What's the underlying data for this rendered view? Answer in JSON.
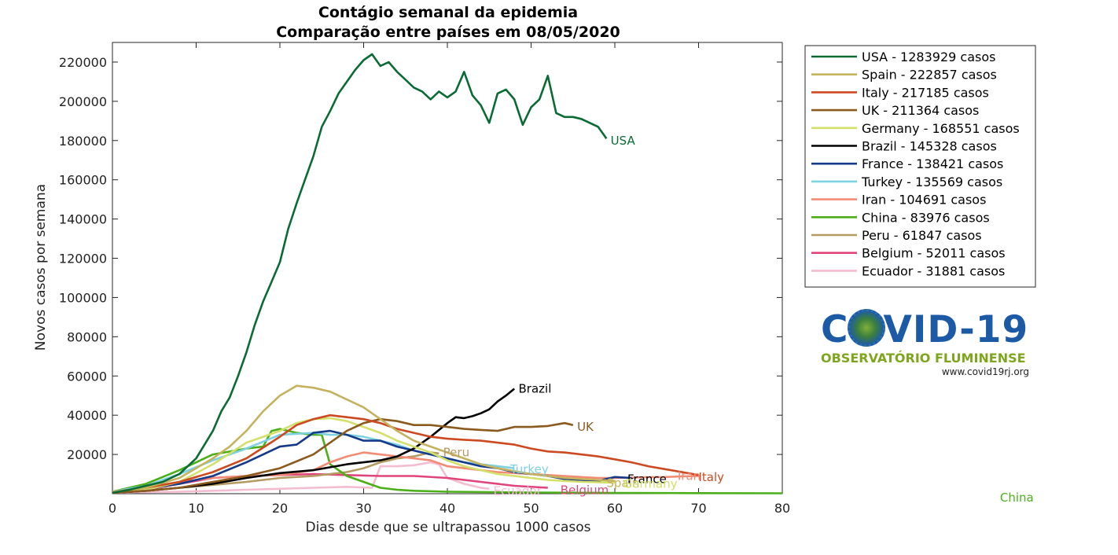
{
  "chart_data": {
    "type": "line",
    "title": "Contágio semanal da epidemia",
    "subtitle": "Comparação entre países em 08/05/2020",
    "xlabel": "Dias desde que se ultrapassou 1000 casos",
    "ylabel": "Novos casos por semana",
    "xlim": [
      0,
      80
    ],
    "ylim": [
      0,
      230000
    ],
    "xticks": [
      0,
      10,
      20,
      30,
      40,
      50,
      60,
      70,
      80
    ],
    "yticks": [
      20000,
      40000,
      60000,
      80000,
      100000,
      120000,
      140000,
      160000,
      180000,
      200000,
      220000
    ],
    "grid": false,
    "legend_position": "outside-right",
    "series": [
      {
        "name": "USA",
        "legend": "USA - 1283929 casos",
        "color": "#0b6b35",
        "x": [
          0,
          2,
          4,
          6,
          8,
          10,
          12,
          13,
          14,
          15,
          16,
          17,
          18,
          19,
          20,
          21,
          22,
          23,
          24,
          25,
          26,
          27,
          28,
          29,
          30,
          31,
          32,
          33,
          34,
          35,
          36,
          37,
          38,
          39,
          40,
          41,
          42,
          43,
          44,
          45,
          46,
          47,
          48,
          49,
          50,
          51,
          52,
          53,
          54,
          55,
          56,
          57,
          58,
          59
        ],
        "y": [
          500,
          2000,
          4000,
          6000,
          10000,
          18000,
          32000,
          42000,
          49000,
          60000,
          72000,
          86000,
          98000,
          108000,
          118000,
          135000,
          148000,
          160000,
          172000,
          187000,
          195000,
          204000,
          210000,
          216000,
          221000,
          224000,
          218000,
          220000,
          215000,
          211000,
          207000,
          205000,
          201000,
          205000,
          202000,
          205000,
          215000,
          203000,
          198000,
          189000,
          204000,
          206000,
          201000,
          188000,
          197000,
          201000,
          213000,
          194000,
          192000,
          192000,
          191000,
          189000,
          187000,
          181000
        ]
      },
      {
        "name": "Spain",
        "legend": "Spain - 222857 casos",
        "color": "#c5b25e",
        "x": [
          0,
          4,
          8,
          12,
          14,
          16,
          18,
          20,
          22,
          24,
          26,
          28,
          30,
          32,
          34,
          36,
          38,
          40,
          42,
          44,
          46,
          48,
          50,
          52,
          54,
          56,
          58,
          60
        ],
        "y": [
          1000,
          3000,
          8000,
          18000,
          24000,
          32000,
          42000,
          50000,
          55000,
          54000,
          52000,
          48000,
          44000,
          38000,
          32000,
          27000,
          24000,
          21000,
          18000,
          15000,
          13000,
          11500,
          10000,
          9000,
          8000,
          7500,
          7000,
          6500
        ]
      },
      {
        "name": "Italy",
        "legend": "Italy - 217185 casos",
        "color": "#cc4a21",
        "x": [
          0,
          4,
          8,
          12,
          16,
          20,
          22,
          24,
          26,
          28,
          30,
          32,
          34,
          36,
          38,
          40,
          42,
          44,
          46,
          48,
          50,
          52,
          54,
          56,
          58,
          60,
          62,
          64,
          66,
          68,
          70
        ],
        "y": [
          1000,
          3000,
          6000,
          11000,
          18000,
          29000,
          35000,
          38000,
          40000,
          39000,
          38000,
          36000,
          33000,
          31000,
          29000,
          28000,
          27500,
          27000,
          26000,
          25000,
          23000,
          21500,
          21000,
          20000,
          19000,
          17500,
          16000,
          14000,
          12500,
          11000,
          9500
        ]
      },
      {
        "name": "UK",
        "legend": "UK - 211364 casos",
        "color": "#8a5a1e",
        "x": [
          0,
          4,
          8,
          12,
          16,
          20,
          24,
          26,
          28,
          30,
          32,
          34,
          36,
          38,
          40,
          42,
          44,
          46,
          48,
          50,
          52,
          54,
          55
        ],
        "y": [
          500,
          1500,
          3000,
          6000,
          9000,
          13000,
          20000,
          26000,
          32000,
          36000,
          38000,
          37000,
          35000,
          35000,
          34000,
          33000,
          32500,
          32000,
          34000,
          34000,
          34500,
          36000,
          35000
        ]
      },
      {
        "name": "Germany",
        "legend": "Germany - 168551 casos",
        "color": "#d3e06c",
        "x": [
          0,
          4,
          8,
          12,
          16,
          20,
          22,
          24,
          26,
          28,
          30,
          32,
          34,
          36,
          38,
          40,
          42,
          44,
          46,
          48,
          50,
          52,
          54,
          56,
          58,
          60
        ],
        "y": [
          500,
          2000,
          6000,
          15000,
          26000,
          32000,
          36000,
          38000,
          38500,
          37000,
          34000,
          31000,
          27000,
          24000,
          21000,
          17000,
          14000,
          12000,
          10000,
          9000,
          8000,
          7000,
          6500,
          6000,
          5800,
          5600
        ]
      },
      {
        "name": "Brazil",
        "legend": "Brazil - 145328 casos",
        "color": "#000000",
        "x": [
          0,
          4,
          8,
          12,
          16,
          20,
          24,
          28,
          32,
          34,
          36,
          38,
          40,
          41,
          42,
          43,
          44,
          45,
          46,
          47,
          48
        ],
        "y": [
          500,
          1500,
          3000,
          5000,
          8000,
          10500,
          12000,
          15000,
          17000,
          19000,
          23000,
          29000,
          36000,
          39000,
          38500,
          39500,
          41000,
          43000,
          47000,
          50000,
          53500
        ]
      },
      {
        "name": "France",
        "legend": "France - 138421 casos",
        "color": "#163a8a",
        "x": [
          0,
          4,
          8,
          12,
          16,
          20,
          22,
          24,
          26,
          28,
          30,
          32,
          34,
          36,
          38,
          40,
          42,
          44,
          46,
          48,
          50,
          52,
          54,
          56,
          58,
          60,
          62
        ],
        "y": [
          1000,
          2500,
          5000,
          9000,
          16000,
          24000,
          25000,
          31000,
          32000,
          30000,
          27000,
          27000,
          24000,
          22000,
          20000,
          18000,
          16000,
          14000,
          13000,
          11000,
          10000,
          9000,
          7500,
          7000,
          6500,
          8500,
          8000
        ]
      },
      {
        "name": "Turkey",
        "legend": "Turkey - 135569 casos",
        "color": "#7ed1e0",
        "x": [
          0,
          4,
          8,
          12,
          16,
          20,
          24,
          26,
          28,
          30,
          32,
          34,
          36,
          38,
          40,
          42,
          44,
          46,
          48
        ],
        "y": [
          1000,
          4000,
          10000,
          17000,
          23000,
          30000,
          31000,
          30000,
          30000,
          29000,
          27000,
          25000,
          22000,
          20000,
          18000,
          16000,
          15000,
          14000,
          13000
        ]
      },
      {
        "name": "Iran",
        "legend": "Iran - 104691 casos",
        "color": "#f28c74",
        "x": [
          0,
          4,
          8,
          12,
          16,
          20,
          24,
          26,
          28,
          30,
          32,
          34,
          36,
          38,
          40,
          42,
          44,
          46,
          48,
          50,
          52,
          54,
          56,
          58,
          60,
          62,
          64,
          66,
          68,
          70
        ],
        "y": [
          1000,
          3000,
          6000,
          8000,
          9000,
          9500,
          12000,
          16000,
          19000,
          21000,
          20000,
          19000,
          18000,
          17000,
          14000,
          13000,
          12000,
          11000,
          10500,
          10000,
          9500,
          9000,
          8500,
          8000,
          8000,
          8200,
          8400,
          8500,
          8800,
          9000
        ]
      },
      {
        "name": "China",
        "legend": "China - 83976 casos",
        "color": "#4caf1a",
        "x": [
          0,
          4,
          8,
          12,
          16,
          18,
          19,
          20,
          22,
          24,
          25,
          26,
          27,
          28,
          30,
          32,
          34,
          36,
          40,
          45,
          50,
          60,
          70,
          80
        ],
        "y": [
          1000,
          5000,
          12000,
          20000,
          23000,
          24000,
          32000,
          33000,
          31000,
          30000,
          30000,
          15000,
          12000,
          9000,
          6000,
          3000,
          2000,
          1500,
          1000,
          800,
          600,
          400,
          300,
          200
        ]
      },
      {
        "name": "Peru",
        "legend": "Peru - 61847 casos",
        "color": "#b59a62",
        "x": [
          0,
          4,
          8,
          12,
          16,
          20,
          24,
          26,
          28,
          30,
          32,
          34,
          36,
          38,
          39
        ],
        "y": [
          500,
          1500,
          3000,
          4500,
          6000,
          8000,
          9000,
          10000,
          11000,
          13000,
          16000,
          18000,
          19000,
          21000,
          20500
        ]
      },
      {
        "name": "Belgium",
        "legend": "Belgium - 52011 casos",
        "color": "#e0457a",
        "x": [
          0,
          4,
          8,
          12,
          16,
          20,
          24,
          28,
          32,
          36,
          40,
          44,
          48,
          52
        ],
        "y": [
          500,
          2000,
          5000,
          8000,
          9000,
          9500,
          10000,
          9500,
          9000,
          9000,
          8000,
          6000,
          4000,
          3000
        ]
      },
      {
        "name": "Ecuador",
        "legend": "Ecuador - 31881 casos",
        "color": "#f4bcd0",
        "x": [
          0,
          4,
          8,
          12,
          16,
          20,
          24,
          28,
          31,
          32,
          34,
          36,
          38,
          39,
          40,
          42,
          44,
          45
        ],
        "y": [
          500,
          800,
          1000,
          1500,
          2000,
          2500,
          3000,
          3500,
          3000,
          14000,
          14000,
          14500,
          16000,
          15000,
          8000,
          5000,
          3000,
          2500
        ]
      }
    ],
    "end_labels": [
      {
        "text": "USA",
        "x": 59.5,
        "y": 180000,
        "color": "#0b6b35"
      },
      {
        "text": "Brazil",
        "x": 48.5,
        "y": 53500,
        "color": "#000000"
      },
      {
        "text": "UK",
        "x": 55.5,
        "y": 34000,
        "color": "#8a5a1e"
      },
      {
        "text": "Peru",
        "x": 39.5,
        "y": 21000,
        "color": "#b59a62"
      },
      {
        "text": "Turkey",
        "x": 47.5,
        "y": 12500,
        "color": "#7ed1e0"
      },
      {
        "text": "France",
        "x": 61.5,
        "y": 7500,
        "color": "#000000"
      },
      {
        "text": "Spain",
        "x": 59,
        "y": 5500,
        "color": "#c5b25e"
      },
      {
        "text": "Germany",
        "x": 61,
        "y": 5000,
        "color": "#d3e06c"
      },
      {
        "text": "Iran",
        "x": 67.5,
        "y": 9000,
        "color": "#f28c74"
      },
      {
        "text": "Italy",
        "x": 70,
        "y": 8500,
        "color": "#cc4a21"
      },
      {
        "text": "Ecuador",
        "x": 45.5,
        "y": 1500,
        "color": "#f4bcd0"
      },
      {
        "text": "Belgium",
        "x": 53.5,
        "y": 1800,
        "color": "#e0457a"
      },
      {
        "text": "China",
        "x": 106,
        "y": -2000,
        "color": "#4caf1a"
      }
    ]
  },
  "logo": {
    "main_left": "C",
    "main_right": "VID-19",
    "subtitle": "OBSERVATÓRIO FLUMINENSE",
    "url": "www.covid19rj.org"
  }
}
